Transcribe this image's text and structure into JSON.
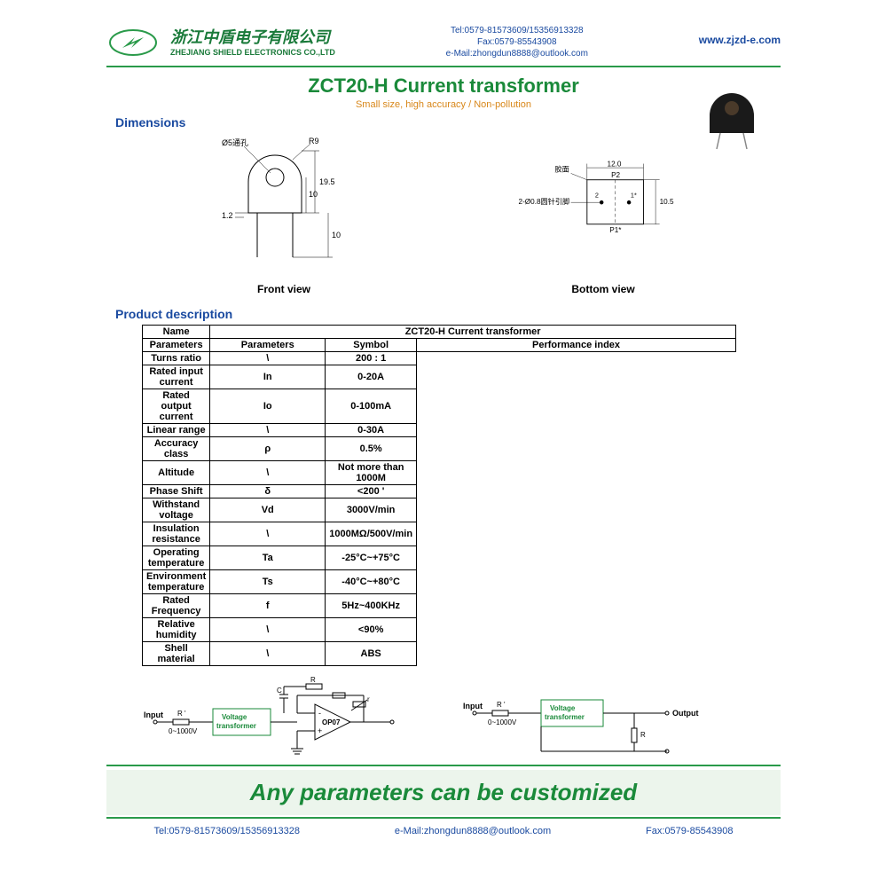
{
  "header": {
    "company_cn": "浙江中盾电子有限公司",
    "company_en": "ZHEJIANG SHIELD ELECTRONICS CO.,LTD",
    "tel_line": "Tel:0579-81573609/15356913328",
    "fax_line": "Fax:0579-85543908",
    "email_line": "e-Mail:zhongdun8888@outlook.com",
    "website": "www.zjzd-e.com"
  },
  "title": "ZCT20-H Current transformer",
  "subtitle": "Small size, high accuracy / Non-pollution",
  "sections": {
    "dimensions": "Dimensions",
    "product_desc": "Product description"
  },
  "dims": {
    "front": {
      "label": "Front view",
      "annot_hole": "Ø5通孔",
      "annot_r": "R9",
      "annot_h1": "19.5",
      "annot_h2": "10",
      "annot_h3": "10",
      "annot_w1": "1.2"
    },
    "bottom": {
      "label": "Bottom view",
      "annot_face": "胶面",
      "annot_w": "12.0",
      "annot_p2": "P2",
      "annot_p1": "P1*",
      "annot_pin": "2-Ø0.8圆针引脚",
      "annot_pin2": "2",
      "annot_pin1": "1*",
      "annot_h": "10.5"
    }
  },
  "table": {
    "name_label": "Name",
    "name_value": "ZCT20-H  Current transformer",
    "params_label": "Parameters",
    "col_param": "Parameters",
    "col_sym": "Symbol",
    "col_perf": "Performance index",
    "rows": [
      {
        "param": "Turns ratio",
        "sym": "\\",
        "perf": "200 : 1"
      },
      {
        "param": "Rated input current",
        "sym": "In",
        "perf": "0-20A"
      },
      {
        "param": "Rated output current",
        "sym": "Io",
        "perf": "0-100mA"
      },
      {
        "param": "Linear range",
        "sym": "\\",
        "perf": "0-30A"
      },
      {
        "param": "Accuracy class",
        "sym": "ρ",
        "perf": "0.5%"
      },
      {
        "param": "Altitude",
        "sym": "\\",
        "perf": "Not more than 1000M"
      },
      {
        "param": "Phase Shift",
        "sym": "δ",
        "perf": "<200 '"
      },
      {
        "param": "Withstand voltage",
        "sym": "Vd",
        "perf": "3000V/min"
      },
      {
        "param": "Insulation resistance",
        "sym": "\\",
        "perf": "1000MΩ/500V/min"
      },
      {
        "param": "Operating temperature",
        "sym": "Ta",
        "perf": "-25°C~+75°C"
      },
      {
        "param": "Environment temperature",
        "sym": "Ts",
        "perf": "-40°C~+80°C"
      },
      {
        "param": "Rated Frequency",
        "sym": "f",
        "perf": "5Hz~400KHz"
      },
      {
        "param": "Relative humidity",
        "sym": "\\",
        "perf": "<90%"
      },
      {
        "param": "Shell material",
        "sym": "\\",
        "perf": "ABS"
      }
    ]
  },
  "circuit": {
    "input": "Input",
    "output": "Output",
    "range": "0~1000V",
    "vt": "Voltage\ntransformer",
    "op": "OP07",
    "R": "R",
    "Rp": "R '",
    "C": "C",
    "r": "r"
  },
  "footer": {
    "tagline": "Any parameters can be customized",
    "tel": "Tel:0579-81573609/15356913328",
    "email": "e-Mail:zhongdun8888@outlook.com",
    "fax": "Fax:0579-85543908"
  },
  "colors": {
    "green": "#1a8a3a",
    "blue": "#1a4aa0",
    "orange": "#d8871a"
  }
}
